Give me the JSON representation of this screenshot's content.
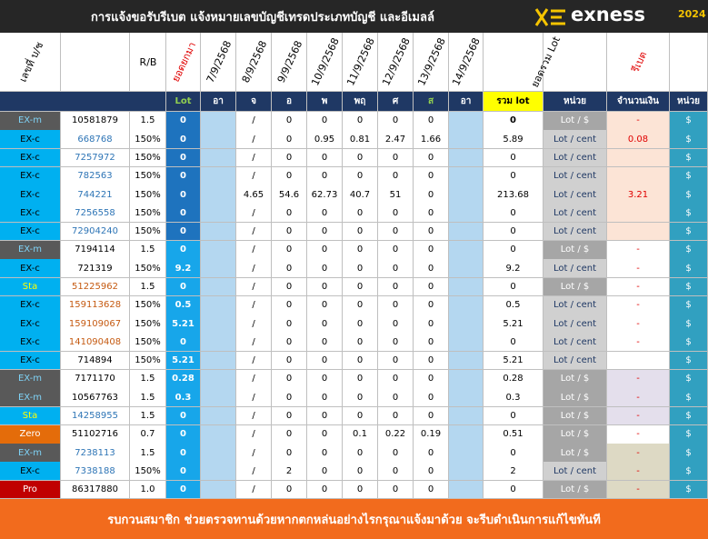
{
  "header": {
    "title": "การแจ้งขอรับรีเบต  แจ้งหมายเลขบัญชีเทรดประเภทบัญชี และอีเมลล์",
    "brand": "exness",
    "year": "2024"
  },
  "table": {
    "columns": [
      "เลขที่ บ/ช",
      "R/B",
      "ยอดยกมา",
      "7/9/2568",
      "8/9/2568",
      "9/9/2568",
      "10/9/2568",
      "11/9/2568",
      "12/9/2568",
      "13/9/2568",
      "14/9/2568",
      "ยอดรวม Lot",
      "รีเบต"
    ],
    "subheader": [
      "Lot",
      "อา",
      "จ",
      "อ",
      "พ",
      "พฤ",
      "ศ",
      "ส",
      "อา",
      "รวม lot",
      "หน่วย",
      "จำนวนเงิน",
      "หน่วย"
    ],
    "type_colors": {
      "EX-m": [
        "#595959",
        "#7fd3f7"
      ],
      "EX-c": [
        "#00b0f0",
        "#000000"
      ],
      "Sta": [
        "#00b0f0",
        "#ffff00"
      ],
      "Zero": [
        "#e46c0a",
        "#ffffff"
      ],
      "Pro": [
        "#c00000",
        "#ffffff"
      ]
    },
    "rows": [
      {
        "cells": [
          "EX-m",
          "10581879",
          "1.5",
          0,
          null,
          "/",
          0,
          0,
          0,
          0,
          0,
          null,
          0,
          "Lot / $",
          "-",
          "$"
        ],
        "account_color": "#000000",
        "unit_bg": "#a6a6a6",
        "amount_bg": "#fce4d6"
      },
      {
        "cells": [
          "EX-c",
          "668768",
          "150%",
          0,
          null,
          "/",
          0,
          0.95,
          0.81,
          2.47,
          1.66,
          null,
          5.89,
          "Lot / cent",
          0.08,
          "$"
        ],
        "account_color": "#2e75b6",
        "unit_bg": "#d0d0d0",
        "amount_bg": "#fce4d6"
      },
      {
        "cells": [
          "EX-c",
          "7257972",
          "150%",
          0,
          null,
          "/",
          0,
          0,
          0,
          0,
          0,
          null,
          0,
          "Lot / cent",
          null,
          "$"
        ],
        "account_color": "#2e75b6",
        "unit_bg": "#d0d0d0",
        "amount_bg": "#fce4d6"
      },
      {
        "cells": [
          "EX-c",
          "782563",
          "150%",
          0,
          null,
          "/",
          0,
          0,
          0,
          0,
          0,
          null,
          0,
          "Lot / cent",
          null,
          "$"
        ],
        "account_color": "#2e75b6",
        "unit_bg": "#d0d0d0",
        "amount_bg": "#fce4d6"
      },
      {
        "cells": [
          "EX-c",
          "744221",
          "150%",
          0,
          null,
          4.65,
          54.6,
          62.73,
          40.7,
          51,
          0,
          null,
          213.68,
          "Lot / cent",
          3.21,
          "$"
        ],
        "account_color": "#2e75b6",
        "unit_bg": "#d0d0d0",
        "amount_bg": "#fce4d6"
      },
      {
        "cells": [
          "EX-c",
          "7256558",
          "150%",
          0,
          null,
          "/",
          0,
          0,
          0,
          0,
          0,
          null,
          0,
          "Lot / cent",
          null,
          "$"
        ],
        "account_color": "#2e75b6",
        "unit_bg": "#d0d0d0",
        "amount_bg": "#fce4d6"
      },
      {
        "cells": [
          "EX-c",
          "72904240",
          "150%",
          0,
          null,
          "/",
          0,
          0,
          0,
          0,
          0,
          null,
          0,
          "Lot / cent",
          null,
          "$"
        ],
        "account_color": "#2e75b6",
        "unit_bg": "#d0d0d0",
        "amount_bg": "#fce4d6"
      },
      {
        "cells": [
          "EX-m",
          "7194114",
          "1.5",
          0,
          null,
          "/",
          0,
          0,
          0,
          0,
          0,
          null,
          0,
          "Lot / $",
          "-",
          "$"
        ],
        "account_color": "#000000",
        "unit_bg": "#a6a6a6",
        "amount_bg": "#ffffff"
      },
      {
        "cells": [
          "EX-c",
          "721319",
          "150%",
          9.2,
          null,
          "/",
          0,
          0,
          0,
          0,
          0,
          null,
          9.2,
          "Lot / cent",
          "-",
          "$"
        ],
        "account_color": "#000000",
        "unit_bg": "#d0d0d0",
        "amount_bg": "#ffffff"
      },
      {
        "cells": [
          "Sta",
          "51225962",
          "1.5",
          0,
          null,
          "/",
          0,
          0,
          0,
          0,
          0,
          null,
          0,
          "Lot / $",
          "-",
          "$"
        ],
        "account_color": "#c55a11",
        "unit_bg": "#a6a6a6",
        "amount_bg": "#ffffff"
      },
      {
        "cells": [
          "EX-c",
          "159113628",
          "150%",
          0.5,
          null,
          "/",
          0,
          0,
          0,
          0,
          0,
          null,
          0.5,
          "Lot / cent",
          "-",
          "$"
        ],
        "account_color": "#c55a11",
        "unit_bg": "#d0d0d0",
        "amount_bg": "#ffffff"
      },
      {
        "cells": [
          "EX-c",
          "159109067",
          "150%",
          5.21,
          null,
          "/",
          0,
          0,
          0,
          0,
          0,
          null,
          5.21,
          "Lot / cent",
          "-",
          "$"
        ],
        "account_color": "#c55a11",
        "unit_bg": "#d0d0d0",
        "amount_bg": "#ffffff"
      },
      {
        "cells": [
          "EX-c",
          "141090408",
          "150%",
          0,
          null,
          "/",
          0,
          0,
          0,
          0,
          0,
          null,
          0,
          "Lot / cent",
          "-",
          "$"
        ],
        "account_color": "#c55a11",
        "unit_bg": "#d0d0d0",
        "amount_bg": "#ffffff"
      },
      {
        "cells": [
          "EX-c",
          "714894",
          "150%",
          5.21,
          null,
          "/",
          0,
          0,
          0,
          0,
          0,
          null,
          5.21,
          "Lot / cent",
          null,
          "$"
        ],
        "account_color": "#000000",
        "unit_bg": "#d0d0d0",
        "amount_bg": "#ffffff"
      },
      {
        "cells": [
          "EX-m",
          "7171170",
          "1.5",
          0.28,
          null,
          "/",
          0,
          0,
          0,
          0,
          0,
          null,
          0.28,
          "Lot / $",
          "-",
          "$"
        ],
        "account_color": "#000000",
        "unit_bg": "#a6a6a6",
        "amount_bg": "#e4dfec"
      },
      {
        "cells": [
          "EX-m",
          "10567763",
          "1.5",
          0.3,
          null,
          "/",
          0,
          0,
          0,
          0,
          0,
          null,
          0.3,
          "Lot / $",
          "-",
          "$"
        ],
        "account_color": "#000000",
        "unit_bg": "#a6a6a6",
        "amount_bg": "#e4dfec"
      },
      {
        "cells": [
          "Sta",
          "14258955",
          "1.5",
          0,
          null,
          "/",
          0,
          0,
          0,
          0,
          0,
          null,
          0,
          "Lot / $",
          "-",
          "$"
        ],
        "account_color": "#2e75b6",
        "unit_bg": "#a6a6a6",
        "amount_bg": "#e4dfec"
      },
      {
        "cells": [
          "Zero",
          "51102716",
          "0.7",
          0,
          null,
          "/",
          0,
          0,
          0.1,
          0.22,
          0.19,
          null,
          0.51,
          "Lot / $",
          "-",
          "$"
        ],
        "account_color": "#000000",
        "unit_bg": "#a6a6a6",
        "amount_bg": "#ffffff"
      },
      {
        "cells": [
          "EX-m",
          "7238113",
          "1.5",
          0,
          null,
          "/",
          0,
          0,
          0,
          0,
          0,
          null,
          0,
          "Lot / $",
          "-",
          "$"
        ],
        "account_color": "#2e75b6",
        "unit_bg": "#a6a6a6",
        "amount_bg": "#ddd9c4"
      },
      {
        "cells": [
          "EX-c",
          "7338188",
          "150%",
          0,
          null,
          "/",
          2,
          0,
          0,
          0,
          0,
          null,
          2,
          "Lot / cent",
          "-",
          "$"
        ],
        "account_color": "#2e75b6",
        "unit_bg": "#d0d0d0",
        "amount_bg": "#ddd9c4"
      },
      {
        "cells": [
          "Pro",
          "86317880",
          "1.0",
          0,
          null,
          "/",
          0,
          0,
          0,
          0,
          0,
          null,
          0,
          "Lot / $",
          "-",
          "$"
        ],
        "account_color": "#000000",
        "unit_bg": "#a6a6a6",
        "amount_bg": "#ddd9c4"
      }
    ]
  },
  "footer": "รบกวนสมาชิก ช่วยตรวจทานด้วยหากตกหล่นอย่างไรกรุณาแจ้งมาด้วย จะรีบดำเนินการแก้ไขทันที"
}
